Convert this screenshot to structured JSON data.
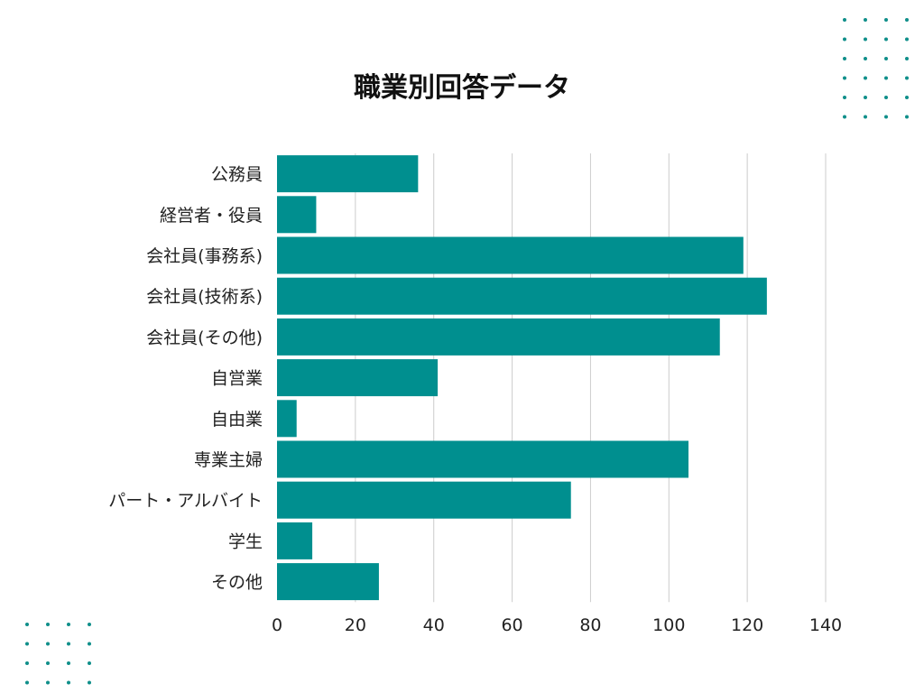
{
  "chart_data": {
    "type": "bar",
    "orientation": "horizontal",
    "title": "職業別回答データ",
    "xlabel": "",
    "ylabel": "",
    "categories": [
      "公務員",
      "経営者・役員",
      "会社員(事務系)",
      "会社員(技術系)",
      "会社員(その他)",
      "自営業",
      "自由業",
      "専業主婦",
      "パート・アルバイト",
      "学生",
      "その他"
    ],
    "values": [
      36,
      10,
      119,
      125,
      113,
      41,
      5,
      105,
      75,
      9,
      26
    ],
    "xlim": [
      0,
      140
    ],
    "xticks": [
      0,
      20,
      40,
      60,
      80,
      100,
      120,
      140
    ],
    "grid": "vertical",
    "legend": "none"
  },
  "colors": {
    "bar": "#008f8f",
    "grid": "#cccccc",
    "dots": "#0f8f8a",
    "text": "#222222"
  }
}
